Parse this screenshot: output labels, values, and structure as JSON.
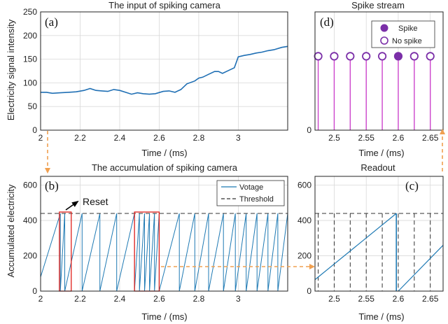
{
  "colors": {
    "signal": "#1f6fb4",
    "voltage": "#1f7ab4",
    "threshold": "#333333",
    "highlight": "#e0201b",
    "spike": "#7b2fa8",
    "stem": "#cc44cc",
    "arrow": "#f0a050",
    "grid": "#d9d9d9"
  },
  "chart_data": [
    {
      "id": "a",
      "type": "line",
      "panel_label": "(a)",
      "title": "The input of spiking camera",
      "xlabel": "Time / (ms)",
      "ylabel": "Electricity signal intensity",
      "xlim": [
        2,
        3.25
      ],
      "ylim": [
        0,
        250
      ],
      "xticks": [
        "2",
        "2.2",
        "2.4",
        "2.6",
        "2.8",
        "3"
      ],
      "xtick_values": [
        2,
        2.2,
        2.4,
        2.6,
        2.8,
        3
      ],
      "yticks": [
        "0",
        "50",
        "100",
        "150",
        "200",
        "250"
      ],
      "ytick_values": [
        0,
        50,
        100,
        150,
        200,
        250
      ],
      "grid": true,
      "x": [
        2.0,
        2.03,
        2.06,
        2.1,
        2.14,
        2.18,
        2.22,
        2.25,
        2.28,
        2.31,
        2.34,
        2.37,
        2.4,
        2.43,
        2.46,
        2.49,
        2.52,
        2.55,
        2.58,
        2.62,
        2.65,
        2.68,
        2.71,
        2.74,
        2.78,
        2.8,
        2.82,
        2.85,
        2.88,
        2.9,
        2.92,
        2.95,
        2.98,
        3.0,
        3.03,
        3.06,
        3.09,
        3.12,
        3.15,
        3.18,
        3.22,
        3.25
      ],
      "y": [
        80,
        80,
        78,
        79,
        80,
        81,
        84,
        88,
        84,
        83,
        82,
        86,
        84,
        80,
        76,
        79,
        77,
        76,
        77,
        82,
        83,
        80,
        86,
        98,
        104,
        110,
        112,
        118,
        124,
        124,
        120,
        126,
        132,
        155,
        158,
        160,
        163,
        165,
        168,
        170,
        175,
        177
      ]
    },
    {
      "id": "b",
      "type": "line",
      "panel_label": "(b)",
      "title": "The accumulation of spiking camera",
      "xlabel": "Time / (ms)",
      "ylabel": "Accumulated electricity",
      "xlim": [
        2,
        3.25
      ],
      "ylim": [
        0,
        650
      ],
      "xticks": [
        "2",
        "2.2",
        "2.4",
        "2.6",
        "2.8",
        "3"
      ],
      "xtick_values": [
        2,
        2.2,
        2.4,
        2.6,
        2.8,
        3
      ],
      "yticks": [
        "0",
        "200",
        "400",
        "600"
      ],
      "ytick_values": [
        0,
        200,
        400,
        600
      ],
      "grid": true,
      "threshold": 440,
      "reset_times": [
        2.1,
        2.122,
        2.21,
        2.3,
        2.385,
        2.475,
        2.5,
        2.526,
        2.551,
        2.576,
        2.6,
        2.702,
        2.78,
        2.85,
        2.925,
        2.985,
        3.04,
        3.095,
        3.15,
        3.2,
        3.25
      ],
      "highlight_boxes": [
        {
          "x0": 2.095,
          "x1": 2.155,
          "y0": 0,
          "y1": 440
        },
        {
          "x0": 2.475,
          "x1": 2.6,
          "y0": 0,
          "y1": 440
        }
      ],
      "annotation": "Reset",
      "legend": [
        "Votage",
        "Threshold"
      ],
      "legend_position": "top-right"
    },
    {
      "id": "d",
      "type": "stem",
      "panel_label": "(d)",
      "title": "Spike stream",
      "xlabel": "Time / (ms)",
      "xlim": [
        2.47,
        2.67
      ],
      "ylim": [
        0,
        1.6
      ],
      "xticks": [
        "2.5",
        "2.55",
        "2.6",
        "2.65"
      ],
      "xtick_values": [
        2.5,
        2.55,
        2.6,
        2.65
      ],
      "yticks": [
        "0",
        "1"
      ],
      "ytick_values": [
        0,
        1
      ],
      "grid": true,
      "x": [
        2.475,
        2.5,
        2.525,
        2.55,
        2.575,
        2.6,
        2.625,
        2.65
      ],
      "spike": [
        0,
        0,
        0,
        0,
        0,
        1,
        0,
        0
      ],
      "legend": [
        "Spike",
        "No spike"
      ],
      "legend_position": "top-right"
    },
    {
      "id": "c",
      "type": "line",
      "panel_label": "(c)",
      "title": "Readout",
      "xlabel": "Time / (ms)",
      "xlim": [
        2.47,
        2.67
      ],
      "ylim": [
        0,
        650
      ],
      "xticks": [
        "2.5",
        "2.55",
        "2.6",
        "2.65"
      ],
      "xtick_values": [
        2.5,
        2.55,
        2.6,
        2.65
      ],
      "yticks": [
        "0",
        "200",
        "400",
        "600"
      ],
      "ytick_values": [
        0,
        200,
        400,
        600
      ],
      "grid": true,
      "threshold": 440,
      "readout_times": [
        2.475,
        2.5,
        2.525,
        2.55,
        2.575,
        2.6,
        2.625,
        2.65
      ],
      "voltage": [
        [
          {
            "x": 2.47,
            "y": 65
          },
          {
            "x": 2.597,
            "y": 440
          }
        ],
        [
          {
            "x": 2.6,
            "y": 0
          },
          {
            "x": 2.67,
            "y": 260
          }
        ]
      ]
    }
  ]
}
